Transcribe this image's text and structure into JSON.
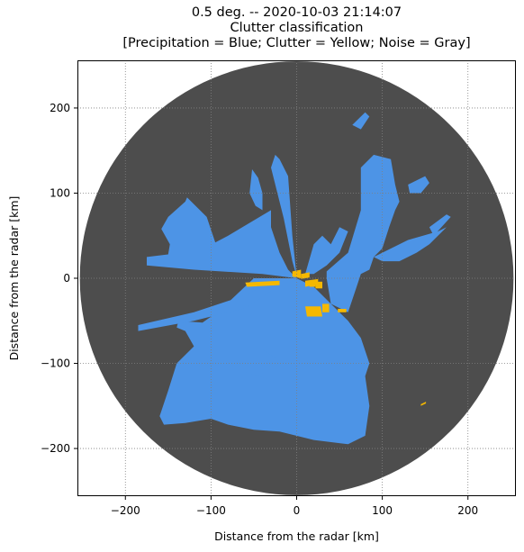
{
  "chart_data": {
    "type": "heatmap",
    "title": "0.5 deg. -- 2020-10-03 21:14:07",
    "subtitle": "Clutter classification",
    "legend_text": "[Precipitation = Blue; Clutter = Yellow; Noise = Gray]",
    "xlabel": "Distance from the radar [km]",
    "ylabel": "Distance from the radar [km]",
    "xlim": [
      -256,
      256
    ],
    "ylim": [
      -256,
      256
    ],
    "xticks": [
      -200,
      -100,
      0,
      100,
      200
    ],
    "yticks": [
      -200,
      -100,
      0,
      100,
      200
    ],
    "xtick_labels": [
      "−200",
      "−100",
      "0",
      "100",
      "200"
    ],
    "ytick_labels": [
      "−200",
      "−100",
      "0",
      "100",
      "200"
    ],
    "grid": true,
    "radar_range_km": 254,
    "colors": {
      "noise": "#4d4d4d",
      "precipitation": "#4d94e6",
      "clutter": "#f5b800",
      "grid": "#808080"
    },
    "classes": [
      "Precipitation",
      "Clutter",
      "Noise"
    ],
    "precipitation_regions": [
      [
        [
          -50,
          0
        ],
        [
          -90,
          -38
        ],
        [
          -110,
          -52
        ],
        [
          -138,
          -50
        ],
        [
          -140,
          -58
        ],
        [
          -130,
          -62
        ],
        [
          -120,
          -80
        ],
        [
          -140,
          -100
        ],
        [
          -150,
          -132
        ],
        [
          -160,
          -162
        ],
        [
          -155,
          -172
        ],
        [
          -130,
          -170
        ],
        [
          -100,
          -165
        ],
        [
          -80,
          -172
        ],
        [
          -50,
          -178
        ],
        [
          -20,
          -180
        ],
        [
          20,
          -190
        ],
        [
          60,
          -195
        ],
        [
          80,
          -185
        ],
        [
          85,
          -150
        ],
        [
          80,
          -115
        ],
        [
          85,
          -100
        ],
        [
          75,
          -70
        ],
        [
          60,
          -50
        ],
        [
          40,
          -30
        ],
        [
          20,
          -10
        ],
        [
          0,
          0
        ]
      ],
      [
        [
          -30,
          -5
        ],
        [
          -60,
          -20
        ],
        [
          -120,
          -40
        ],
        [
          -185,
          -55
        ],
        [
          -185,
          -62
        ],
        [
          -120,
          -50
        ],
        [
          -60,
          -35
        ],
        [
          -30,
          -15
        ]
      ],
      [
        [
          0,
          0
        ],
        [
          -40,
          5
        ],
        [
          -120,
          10
        ],
        [
          -175,
          15
        ],
        [
          -175,
          25
        ],
        [
          -150,
          28
        ],
        [
          -148,
          40
        ],
        [
          -158,
          58
        ],
        [
          -150,
          72
        ],
        [
          -130,
          90
        ],
        [
          -128,
          95
        ],
        [
          -105,
          72
        ],
        [
          -95,
          42
        ],
        [
          -80,
          50
        ],
        [
          -30,
          80
        ],
        [
          -30,
          60
        ],
        [
          -20,
          30
        ],
        [
          -10,
          10
        ]
      ],
      [
        [
          0,
          2
        ],
        [
          -5,
          50
        ],
        [
          -10,
          120
        ],
        [
          -20,
          140
        ],
        [
          -25,
          145
        ],
        [
          -30,
          130
        ],
        [
          -15,
          70
        ],
        [
          -5,
          20
        ]
      ],
      [
        [
          10,
          5
        ],
        [
          20,
          40
        ],
        [
          30,
          50
        ],
        [
          40,
          40
        ],
        [
          50,
          60
        ],
        [
          60,
          55
        ],
        [
          50,
          30
        ],
        [
          35,
          15
        ],
        [
          20,
          5
        ]
      ],
      [
        [
          35,
          8
        ],
        [
          60,
          30
        ],
        [
          75,
          80
        ],
        [
          75,
          130
        ],
        [
          90,
          145
        ],
        [
          110,
          140
        ],
        [
          115,
          110
        ],
        [
          120,
          90
        ],
        [
          115,
          80
        ],
        [
          108,
          60
        ],
        [
          100,
          35
        ],
        [
          90,
          25
        ],
        [
          85,
          10
        ],
        [
          75,
          5
        ],
        [
          70,
          -10
        ],
        [
          60,
          -40
        ],
        [
          40,
          -30
        ],
        [
          35,
          0
        ]
      ],
      [
        [
          90,
          25
        ],
        [
          130,
          45
        ],
        [
          165,
          55
        ],
        [
          175,
          60
        ],
        [
          155,
          40
        ],
        [
          140,
          30
        ],
        [
          120,
          20
        ],
        [
          100,
          20
        ]
      ],
      [
        [
          -52,
          128
        ],
        [
          -55,
          100
        ],
        [
          -48,
          85
        ],
        [
          -40,
          80
        ],
        [
          -40,
          100
        ],
        [
          -45,
          118
        ]
      ],
      [
        [
          130,
          110
        ],
        [
          150,
          120
        ],
        [
          155,
          112
        ],
        [
          145,
          100
        ],
        [
          132,
          100
        ]
      ],
      [
        [
          65,
          180
        ],
        [
          80,
          195
        ],
        [
          85,
          190
        ],
        [
          75,
          175
        ]
      ],
      [
        [
          160,
          50
        ],
        [
          180,
          72
        ],
        [
          175,
          75
        ],
        [
          155,
          60
        ]
      ],
      [
        [
          -45,
          -80
        ],
        [
          -15,
          -100
        ],
        [
          -30,
          -120
        ],
        [
          -60,
          -110
        ]
      ]
    ],
    "clutter_regions": [
      [
        [
          -5,
          8
        ],
        [
          5,
          10
        ],
        [
          5,
          0
        ],
        [
          -5,
          2
        ]
      ],
      [
        [
          -60,
          -5
        ],
        [
          -20,
          -3
        ],
        [
          -20,
          -8
        ],
        [
          -58,
          -10
        ]
      ],
      [
        [
          5,
          5
        ],
        [
          15,
          7
        ],
        [
          15,
          1
        ],
        [
          5,
          -1
        ]
      ],
      [
        [
          10,
          -3
        ],
        [
          25,
          -1
        ],
        [
          25,
          -7
        ],
        [
          10,
          -10
        ]
      ],
      [
        [
          22,
          -4
        ],
        [
          30,
          -4
        ],
        [
          30,
          -12
        ],
        [
          22,
          -12
        ]
      ],
      [
        [
          10,
          -33
        ],
        [
          28,
          -33
        ],
        [
          30,
          -45
        ],
        [
          12,
          -45
        ]
      ],
      [
        [
          30,
          -30
        ],
        [
          38,
          -30
        ],
        [
          38,
          -40
        ],
        [
          30,
          -40
        ]
      ],
      [
        [
          48,
          -36
        ],
        [
          58,
          -36
        ],
        [
          58,
          -40
        ],
        [
          48,
          -40
        ]
      ],
      [
        [
          15,
          -5
        ],
        [
          22,
          -5
        ],
        [
          22,
          -10
        ],
        [
          15,
          -10
        ]
      ],
      [
        [
          145,
          -148
        ],
        [
          151,
          -145
        ],
        [
          151,
          -147
        ],
        [
          145,
          -150
        ]
      ]
    ]
  }
}
